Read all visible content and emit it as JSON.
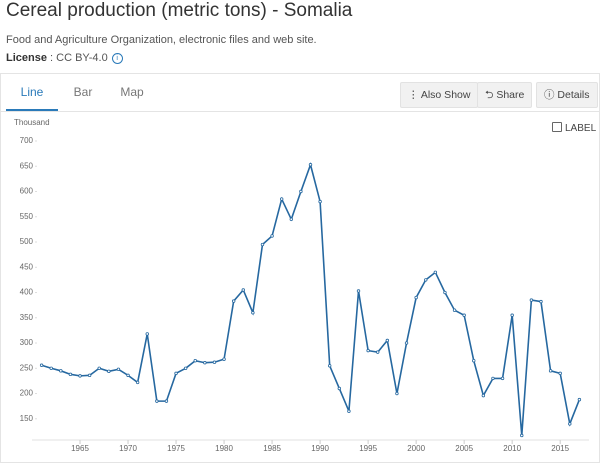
{
  "header": {
    "title": "Cereal production (metric tons) - Somalia",
    "source": "Food and Agriculture Organization, electronic files and web site.",
    "license_label": "License",
    "license_value": " : CC BY-4.0"
  },
  "tabs": [
    "Line",
    "Bar",
    "Map"
  ],
  "buttons": [
    "Also Show",
    "Share",
    "Details"
  ],
  "label_toggle": "LABEL",
  "chart_data": {
    "type": "line",
    "y_unit": "Thousand",
    "x": [
      1961,
      1962,
      1963,
      1964,
      1965,
      1966,
      1967,
      1968,
      1969,
      1970,
      1971,
      1972,
      1973,
      1974,
      1975,
      1976,
      1977,
      1978,
      1979,
      1980,
      1981,
      1982,
      1983,
      1984,
      1985,
      1986,
      1987,
      1988,
      1989,
      1990,
      1991,
      1992,
      1993,
      1994,
      1995,
      1996,
      1997,
      1998,
      1999,
      2000,
      2001,
      2002,
      2003,
      2004,
      2005,
      2006,
      2007,
      2008,
      2009,
      2010,
      2011,
      2012,
      2013,
      2014,
      2015,
      2016,
      2017
    ],
    "series": [
      {
        "color": "#2668a0",
        "values": [
          256,
          250,
          245,
          238,
          235,
          236,
          250,
          244,
          248,
          236,
          222,
          318,
          185,
          185,
          240,
          250,
          265,
          261,
          262,
          268,
          383,
          405,
          360,
          495,
          512,
          585,
          545,
          600,
          653,
          580,
          255,
          210,
          165,
          403,
          285,
          282,
          305,
          200,
          300,
          390,
          425,
          440,
          400,
          365,
          355,
          265,
          196,
          230,
          230,
          355,
          117,
          385,
          382,
          245,
          240,
          140,
          188
        ]
      }
    ],
    "xlim": [
      1960,
      2018
    ],
    "xticks": [
      1965,
      1970,
      1975,
      1980,
      1985,
      1990,
      1995,
      2000,
      2005,
      2010,
      2015
    ],
    "ylim": [
      110,
      700
    ],
    "yticks": [
      150,
      200,
      250,
      300,
      350,
      400,
      450,
      500,
      550,
      600,
      650,
      700
    ]
  }
}
